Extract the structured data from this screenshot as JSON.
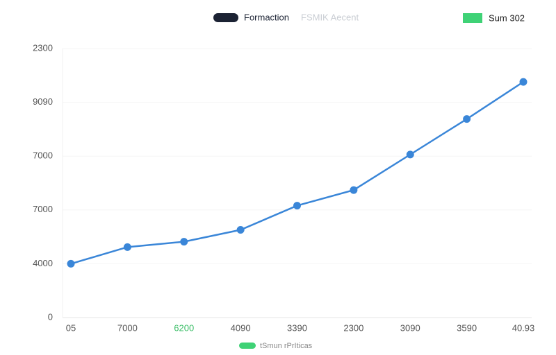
{
  "chart_data": {
    "type": "line",
    "legend": [
      {
        "label": "Formaction",
        "color": "#1b2233"
      },
      {
        "label": "FSMIK Aecent",
        "color": "#c9cdd3"
      },
      {
        "label": "Sum 302",
        "color": "#3fd276"
      }
    ],
    "footer_label": {
      "label": "tSmun rPrIticas",
      "color": "#3fd276"
    },
    "categories": [
      "05",
      "7000",
      "6200",
      "4090",
      "3390",
      "2300",
      "3090",
      "3590",
      "40.93"
    ],
    "category_colors": [
      "#555",
      "#555",
      "#3fbf6a",
      "#555",
      "#555",
      "#555",
      "#555",
      "#555",
      "#555"
    ],
    "y_labels": [
      "0",
      "4000",
      "7000",
      "7000",
      "9090",
      "2300"
    ],
    "yticks": [
      0,
      1,
      2,
      3,
      4,
      5
    ],
    "ylim": [
      0,
      5
    ],
    "grid": true,
    "series": [
      {
        "name": "Formaction",
        "color": "#3a86d8",
        "values": [
          1.0,
          1.31,
          1.41,
          1.63,
          2.08,
          2.37,
          3.03,
          3.69,
          4.38
        ]
      }
    ]
  }
}
